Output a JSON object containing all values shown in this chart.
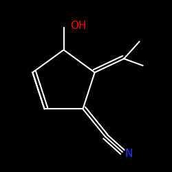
{
  "background_color": "#000000",
  "bond_color_white": "#ffffff",
  "oh_color": "#ff0000",
  "n_color": "#3333ff",
  "oh_text": "OH",
  "n_text": "N",
  "oh_fontsize": 11,
  "n_fontsize": 11,
  "lw": 1.5,
  "figsize": [
    2.5,
    2.5
  ],
  "dpi": 100
}
